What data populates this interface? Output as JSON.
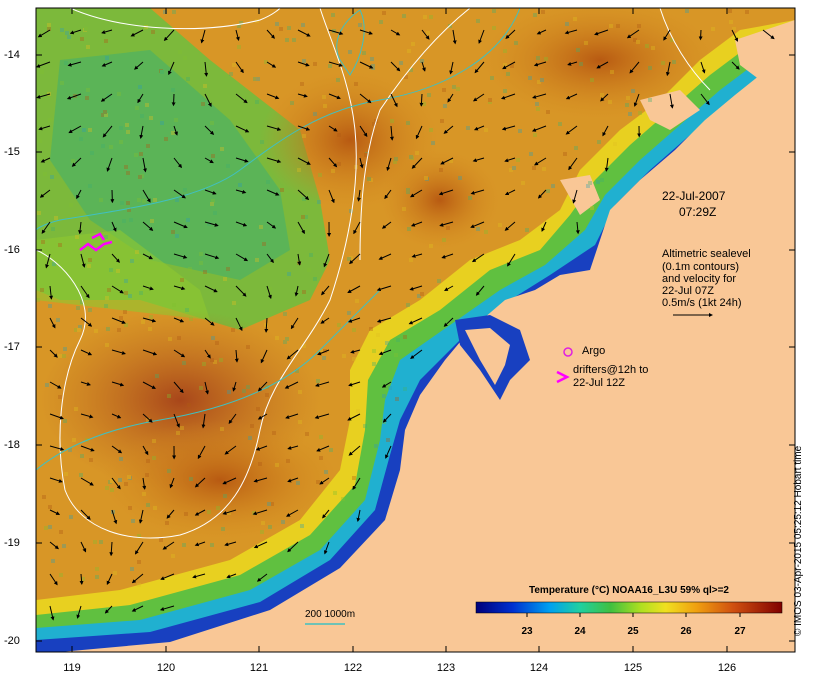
{
  "map": {
    "y_ticks": [
      "-14",
      "-15",
      "-16",
      "-17",
      "-18",
      "-19",
      "-20"
    ],
    "x_ticks": [
      "119",
      "120",
      "121",
      "122",
      "123",
      "124",
      "125",
      "126"
    ],
    "timestamp_date": "22-Jul-2007",
    "timestamp_time": "07:29Z",
    "altimetry_lines": [
      "Altimetric sealevel",
      "(0.1m contours)",
      "and velocity for",
      "22-Jul 07Z",
      "0.5m/s (1kt 24h)"
    ],
    "argo_label": "Argo",
    "drifters_lines": [
      "drifters@12h to",
      "22-Jul 12Z"
    ],
    "depth_label": "200  1000m",
    "colorbar_title": "Temperature (°C) NOAA16_L3U 59% ql>=2",
    "colorbar_ticks": [
      "23",
      "24",
      "25",
      "26",
      "27"
    ],
    "credit": "© IMOS 03-Apr-2015 05:25:12 Hobart time",
    "colors": {
      "land": "#f9c796",
      "depth_contour": "#40c0c0",
      "sealevel_contour": "#ffffff",
      "argo": "#e020e0",
      "drifter": "#ff00ff"
    }
  }
}
